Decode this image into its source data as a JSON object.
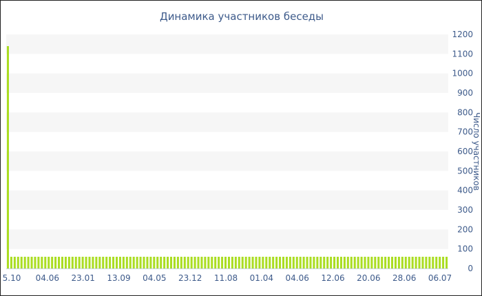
{
  "chart_data": {
    "type": "bar",
    "title": "Динамика участников беседы",
    "xlabel": "",
    "ylabel": "Число участников",
    "ylim": [
      0,
      1200
    ],
    "y_ticks": [
      0,
      100,
      200,
      300,
      400,
      500,
      600,
      700,
      800,
      900,
      1000,
      1100,
      1200
    ],
    "x_tick_labels": [
      "5.10",
      "04.06",
      "23.01",
      "13.09",
      "04.05",
      "23.12",
      "11.08",
      "01.04",
      "04.06",
      "12.06",
      "20.06",
      "28.06",
      "06.07"
    ],
    "grid": "horizontal alternating bands",
    "y_axis_side": "right",
    "bar_color": "#aadd22",
    "series": [
      {
        "values": [
          1140,
          60,
          60,
          60,
          60,
          60,
          60,
          60,
          60,
          60,
          60,
          60,
          60,
          60,
          60,
          60,
          60,
          60,
          60,
          60,
          60,
          60,
          60,
          60,
          60,
          60,
          60,
          60,
          60,
          60,
          60,
          60,
          60,
          60,
          60,
          60,
          60,
          60,
          60,
          60,
          60,
          60,
          60,
          60,
          60,
          60,
          60,
          60,
          60,
          60,
          60,
          60,
          60,
          60,
          60,
          60,
          60,
          60,
          60,
          60,
          60,
          60,
          60,
          60,
          60,
          60,
          60,
          60,
          60,
          60,
          60,
          60,
          60,
          60,
          60,
          60,
          60,
          60,
          60,
          60,
          60,
          60,
          60,
          60,
          60,
          60,
          60,
          60,
          60,
          60,
          60,
          60,
          60,
          60,
          60,
          60,
          60,
          60,
          60,
          60,
          60,
          60,
          60,
          60,
          60,
          60,
          60,
          60,
          60,
          60,
          60,
          60,
          60,
          60,
          60,
          60,
          60,
          60,
          60,
          60,
          60,
          60,
          60,
          60,
          60,
          60,
          60,
          60,
          60,
          60
        ]
      }
    ]
  }
}
